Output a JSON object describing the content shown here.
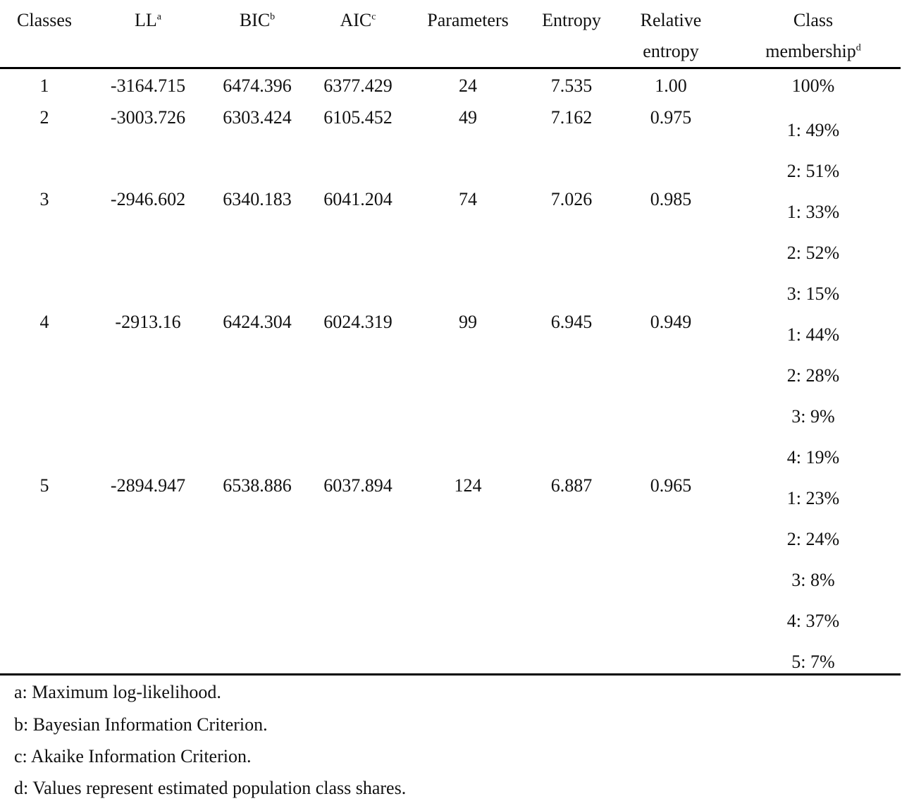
{
  "header": {
    "classes": "Classes",
    "ll": "LL",
    "ll_sup": "a",
    "bic": "BIC",
    "bic_sup": "b",
    "aic": "AIC",
    "aic_sup": "c",
    "parameters": "Parameters",
    "entropy": "Entropy",
    "relative_line1": "Relative",
    "relative_line2": "entropy",
    "membership_line1": "Class",
    "membership_line2": "membership",
    "membership_sup": "d"
  },
  "rows": [
    {
      "classes": "1",
      "ll": "-3164.715",
      "bic": "6474.396",
      "aic": "6377.429",
      "parameters": "24",
      "entropy": "7.535",
      "relative": "1.00"
    },
    {
      "classes": "2",
      "ll": "-3003.726",
      "bic": "6303.424",
      "aic": "6105.452",
      "parameters": "49",
      "entropy": "7.162",
      "relative": "0.975"
    },
    {
      "classes": "3",
      "ll": "-2946.602",
      "bic": "6340.183",
      "aic": "6041.204",
      "parameters": "74",
      "entropy": "7.026",
      "relative": "0.985"
    },
    {
      "classes": "4",
      "ll": "-2913.16",
      "bic": "6424.304",
      "aic": "6024.319",
      "parameters": "99",
      "entropy": "6.945",
      "relative": "0.949"
    },
    {
      "classes": "5",
      "ll": "-2894.947",
      "bic": "6538.886",
      "aic": "6037.894",
      "parameters": "124",
      "entropy": "6.887",
      "relative": "0.965"
    }
  ],
  "membership": [
    "100%",
    "1: 49%",
    "2: 51%",
    "1: 33%",
    "2: 52%",
    "3: 15%",
    "1: 44%",
    "2: 28%",
    "3: 9%",
    "4: 19%",
    "1: 23%",
    "2: 24%",
    "3: 8%",
    "4: 37%",
    "5: 7%"
  ],
  "footnotes": [
    "a: Maximum log-likelihood.",
    "b: Bayesian Information Criterion.",
    "c: Akaike Information Criterion.",
    "d: Values represent estimated population class shares."
  ]
}
